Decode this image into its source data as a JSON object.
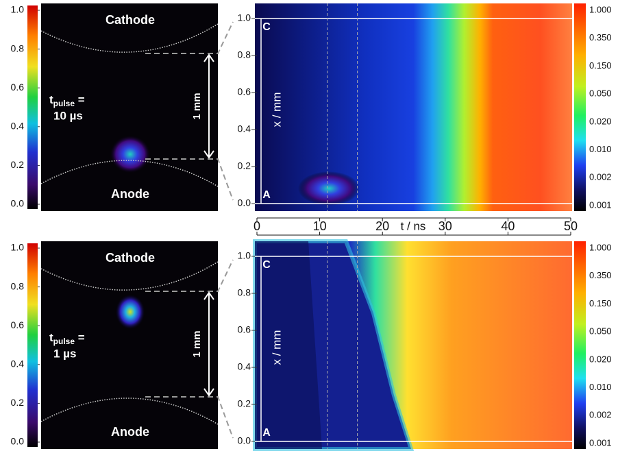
{
  "panels": [
    {
      "left_colorbar": {
        "ticks": [
          {
            "value": 0,
            "label": "0.0"
          },
          {
            "value": 0.2,
            "label": "0.2"
          },
          {
            "value": 0.4,
            "label": "0.4"
          },
          {
            "value": 0.6,
            "label": "0.6"
          },
          {
            "value": 0.8,
            "label": "0.8"
          },
          {
            "value": 1,
            "label": "1.0"
          }
        ]
      },
      "image": {
        "cathode": "Cathode",
        "anode": "Anode",
        "pulse_symbol": "t",
        "pulse_subscript": "pulse",
        "pulse_equals": " =",
        "pulse_value": "10 µs",
        "gap": "1 mm"
      },
      "plot": {
        "ylabel": "x / mm",
        "top_label": "C",
        "bottom_label": "A",
        "yticks": [
          {
            "value": 0,
            "label": "0.0"
          },
          {
            "value": 0.2,
            "label": "0.2"
          },
          {
            "value": 0.4,
            "label": "0.4"
          },
          {
            "value": 0.6,
            "label": "0.6"
          },
          {
            "value": 0.8,
            "label": "0.8"
          },
          {
            "value": 1,
            "label": "1.0"
          }
        ]
      },
      "right_colorbar": {
        "labels": [
          "1.000",
          "0.350",
          "0.150",
          "0.050",
          "0.020",
          "0.010",
          "0.002",
          "0.001"
        ]
      }
    },
    {
      "left_colorbar": {
        "ticks": [
          {
            "value": 0,
            "label": "0.0"
          },
          {
            "value": 0.2,
            "label": "0.2"
          },
          {
            "value": 0.4,
            "label": "0.4"
          },
          {
            "value": 0.6,
            "label": "0.6"
          },
          {
            "value": 0.8,
            "label": "0.8"
          },
          {
            "value": 1,
            "label": "1.0"
          }
        ]
      },
      "image": {
        "cathode": "Cathode",
        "anode": "Anode",
        "pulse_symbol": "t",
        "pulse_subscript": "pulse",
        "pulse_equals": " =",
        "pulse_value": "1 µs",
        "gap": "1 mm"
      },
      "plot": {
        "ylabel": "x / mm",
        "top_label": "C",
        "bottom_label": "A",
        "yticks": [
          {
            "value": 0,
            "label": "0.0"
          },
          {
            "value": 0.2,
            "label": "0.2"
          },
          {
            "value": 0.4,
            "label": "0.4"
          },
          {
            "value": 0.6,
            "label": "0.6"
          },
          {
            "value": 0.8,
            "label": "0.8"
          },
          {
            "value": 1,
            "label": "1.0"
          }
        ]
      },
      "right_colorbar": {
        "labels": [
          "1.000",
          "0.350",
          "0.150",
          "0.050",
          "0.020",
          "0.010",
          "0.002",
          "0.001"
        ]
      }
    }
  ],
  "time_axis": {
    "label": "t / ns",
    "xlim": [
      0,
      50
    ],
    "xticks": [
      0,
      10,
      20,
      30,
      40,
      50
    ],
    "marker_times": [
      11.2,
      16
    ]
  }
}
